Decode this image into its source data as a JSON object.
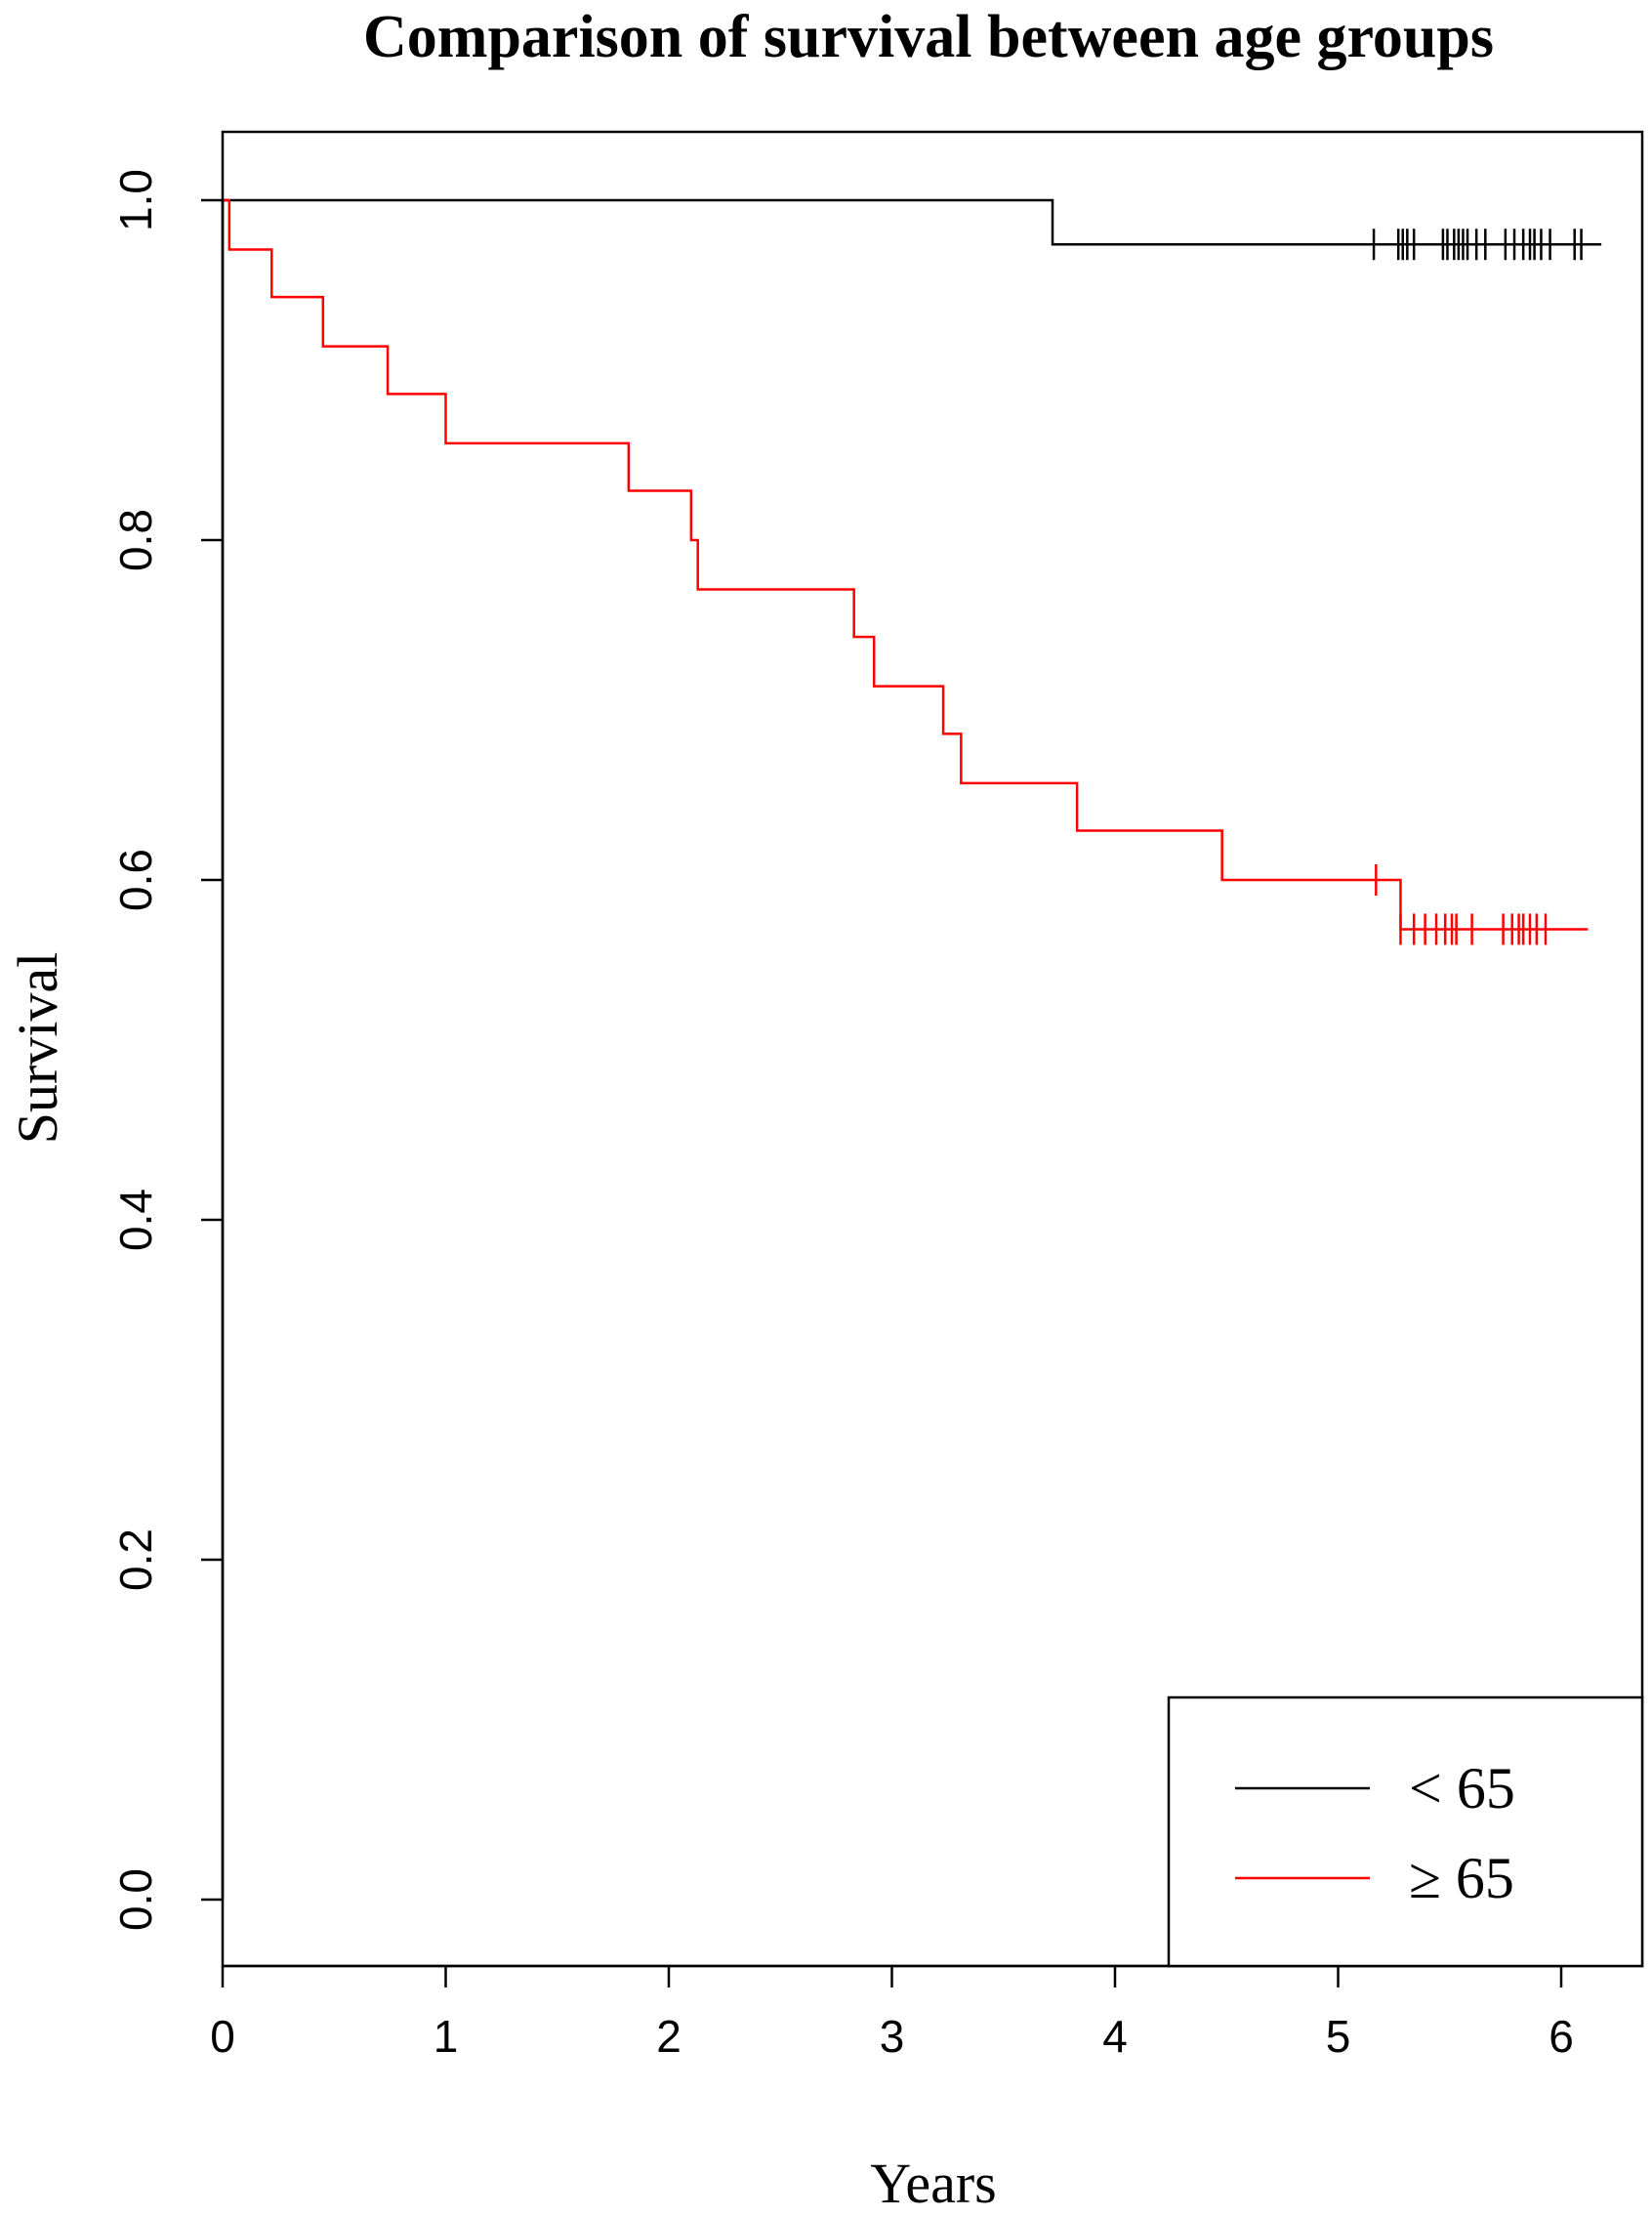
{
  "chart_data": {
    "type": "line",
    "title": "Comparison of survival between age groups",
    "xlabel": "Years",
    "ylabel": "Survival",
    "xlim": [
      0,
      6.35
    ],
    "ylim": [
      -0.04,
      1.04
    ],
    "x_ticks": [
      "0",
      "1",
      "2",
      "3",
      "4",
      "5",
      "6"
    ],
    "y_ticks": [
      "0.0",
      "0.2",
      "0.4",
      "0.6",
      "0.8",
      "1.0"
    ],
    "grid": false,
    "legend_position": "bottom-right",
    "series": [
      {
        "name": "< 65",
        "color": "#000000",
        "step_x": [
          0,
          3.72,
          6.18
        ],
        "step_y": [
          1.0,
          0.974,
          0.974
        ],
        "censor_x": [
          5.16,
          5.27,
          5.29,
          5.31,
          5.34,
          5.47,
          5.49,
          5.52,
          5.54,
          5.56,
          5.58,
          5.62,
          5.66,
          5.75,
          5.79,
          5.83,
          5.86,
          5.88,
          5.91,
          5.95,
          6.06,
          6.09
        ],
        "censor_y": 0.974
      },
      {
        "name": "≥ 65",
        "color": "#ff0000",
        "step_x": [
          0,
          0.03,
          0.22,
          0.45,
          0.74,
          1.0,
          1.82,
          2.1,
          2.13,
          2.83,
          2.92,
          3.23,
          3.31,
          3.83,
          4.48,
          5.28,
          6.12
        ],
        "step_y": [
          1.0,
          0.971,
          0.943,
          0.914,
          0.886,
          0.857,
          0.829,
          0.8,
          0.771,
          0.743,
          0.714,
          0.686,
          0.657,
          0.629,
          0.6,
          0.571,
          0.571
        ],
        "censor_x": [
          5.17,
          5.28,
          5.34,
          5.39,
          5.44,
          5.48,
          5.51,
          5.53,
          5.6,
          5.74,
          5.78,
          5.81,
          5.83,
          5.86,
          5.89,
          5.93
        ],
        "censor_y_values": [
          0.6,
          0.571,
          0.571,
          0.571,
          0.571,
          0.571,
          0.571,
          0.571,
          0.571,
          0.571,
          0.571,
          0.571,
          0.571,
          0.571,
          0.571,
          0.571
        ]
      }
    ]
  }
}
